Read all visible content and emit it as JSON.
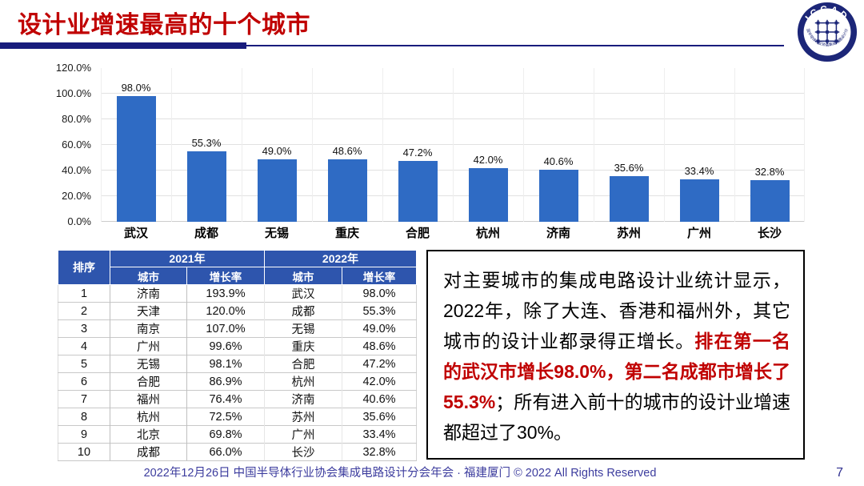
{
  "header": {
    "title": "设计业增速最高的十个城市",
    "logo": {
      "acronym": "ICCAD",
      "ring_text": "中国半导体行业协会集成电路设计分会"
    }
  },
  "chart_data": [
    {
      "type": "bar",
      "title": "设计业增速最高的十个城市",
      "categories": [
        "武汉",
        "成都",
        "无锡",
        "重庆",
        "合肥",
        "杭州",
        "济南",
        "苏州",
        "广州",
        "长沙"
      ],
      "values": [
        98.0,
        55.3,
        49.0,
        48.6,
        47.2,
        42.0,
        40.6,
        35.6,
        33.4,
        32.8
      ],
      "data_labels": [
        "98.0%",
        "55.3%",
        "49.0%",
        "48.6%",
        "47.2%",
        "42.0%",
        "40.6%",
        "35.6%",
        "33.4%",
        "32.8%"
      ],
      "xlabel": "",
      "ylabel": "",
      "ylim": [
        0,
        120
      ],
      "ytick_step": 20,
      "ytick_labels": [
        "0.0%",
        "20.0%",
        "40.0%",
        "60.0%",
        "80.0%",
        "100.0%",
        "120.0%"
      ],
      "grid": true,
      "legend": "none",
      "bar_color": "#2f6bc4"
    },
    {
      "type": "table",
      "header": {
        "rank": "排序",
        "year_2021": "2021年",
        "year_2022": "2022年",
        "city": "城市",
        "growth": "增长率"
      },
      "rows": [
        [
          "1",
          "济南",
          "193.9%",
          "武汉",
          "98.0%"
        ],
        [
          "2",
          "天津",
          "120.0%",
          "成都",
          "55.3%"
        ],
        [
          "3",
          "南京",
          "107.0%",
          "无锡",
          "49.0%"
        ],
        [
          "4",
          "广州",
          "99.6%",
          "重庆",
          "48.6%"
        ],
        [
          "5",
          "无锡",
          "98.1%",
          "合肥",
          "47.2%"
        ],
        [
          "6",
          "合肥",
          "86.9%",
          "杭州",
          "42.0%"
        ],
        [
          "7",
          "福州",
          "76.4%",
          "济南",
          "40.6%"
        ],
        [
          "8",
          "杭州",
          "72.5%",
          "苏州",
          "35.6%"
        ],
        [
          "9",
          "北京",
          "69.8%",
          "广州",
          "33.4%"
        ],
        [
          "10",
          "成都",
          "66.0%",
          "长沙",
          "32.8%"
        ]
      ]
    }
  ],
  "analysis": {
    "segments": [
      {
        "style": "normal",
        "text": "对主要城市的集成电路设计业统计显示，2022年，除了大连、香港和福州外，其它城市的设计业都录得正增长。"
      },
      {
        "style": "red-bold",
        "text": "排在第一名的武汉市增长98.0%，第二名成都市增长了55.3%"
      },
      {
        "style": "normal",
        "text": "；所有进入前十的城市的设计业增速都超过了30%。"
      }
    ]
  },
  "footer": {
    "text": "2022年12月26日 中国半导体行业协会集成电路设计分会年会 · 福建厦门 © 2022 All Rights Reserved",
    "page_number": "7"
  },
  "colors": {
    "title_red": "#c00000",
    "rule_navy": "#181c7c",
    "bar_blue": "#2f6bc4",
    "table_header_blue": "#2e55ad",
    "footer_navy": "#3c3c9e"
  }
}
